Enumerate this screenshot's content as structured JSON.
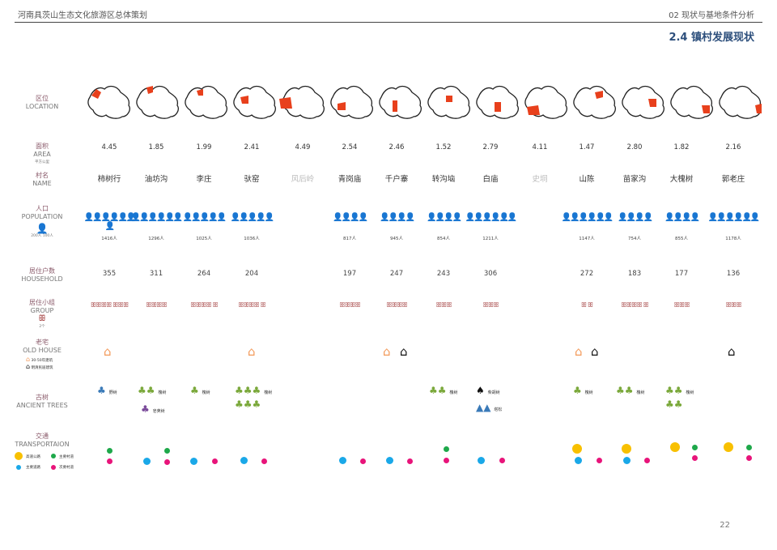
{
  "header": {
    "left": "河南具茨山生态文化旅游区总体策划",
    "right": "02 现状与基地条件分析",
    "section": "2.4 镇村发展现状"
  },
  "labels": {
    "location": {
      "zh": "区位",
      "en": "LOCATION"
    },
    "area": {
      "zh": "面积",
      "en": "AREA",
      "unit": "平方公里"
    },
    "name": {
      "zh": "村名",
      "en": "NAME"
    },
    "population": {
      "zh": "人口",
      "en": "POPULATION",
      "legend": "200人 100人"
    },
    "household": {
      "zh": "居住户数",
      "en": "HOUSEHOLD"
    },
    "group": {
      "zh": "居住小组",
      "en": "GROUP",
      "legend": "2个"
    },
    "oldhouse": {
      "zh": "老宅",
      "en": "OLD HOUSE",
      "legend1": "30-50年建筑",
      "legend2": "明清民居建筑"
    },
    "trees": {
      "zh": "古树",
      "en": "ANCIENT TREES"
    },
    "transport": {
      "zh": "交通",
      "en": "TRANSPORTAION",
      "leg1": "高速公路",
      "leg2": "主要村道",
      "leg3": "主要道路",
      "leg4": "次要村道"
    }
  },
  "villages": [
    {
      "name": "柿树行",
      "area": "4.45",
      "pop": "1416人",
      "hh": "355",
      "people": "👤👤👤👤👤👤👤",
      "groups": "ꕥꕥꕥꕥ ꕥꕥꕥ"
    },
    {
      "name": "油坊沟",
      "area": "1.85",
      "pop": "1296人",
      "hh": "311",
      "people": "👤👤👤👤👤👤",
      "groups": "ꕥꕥꕥꕥ"
    },
    {
      "name": "李庄",
      "area": "1.99",
      "pop": "1025人",
      "hh": "264",
      "people": "👤👤👤👤👤",
      "groups": "ꕥꕥꕥꕥ ꕥ"
    },
    {
      "name": "驮窑",
      "area": "2.41",
      "pop": "1036人",
      "hh": "204",
      "people": "👤👤👤👤👤",
      "groups": "ꕥꕥꕥꕥ ꕥ"
    },
    {
      "name": "风后岭",
      "area": "4.49",
      "pop": "",
      "hh": "",
      "people": "",
      "groups": "",
      "gray": true
    },
    {
      "name": "青岗庙",
      "area": "2.54",
      "pop": "817人",
      "hh": "197",
      "people": "👤👤👤👤",
      "groups": "ꕥꕥꕥꕥ"
    },
    {
      "name": "千户寨",
      "area": "2.46",
      "pop": "945人",
      "hh": "247",
      "people": "👤👤👤👤",
      "groups": "ꕥꕥꕥꕥ"
    },
    {
      "name": "转沟垴",
      "area": "1.52",
      "pop": "854人",
      "hh": "243",
      "people": "👤👤👤👤",
      "groups": "ꕥꕥꕥ"
    },
    {
      "name": "白庙",
      "area": "2.79",
      "pop": "1211人",
      "hh": "306",
      "people": "👤👤👤👤👤👤",
      "groups": "ꕥꕥꕥ"
    },
    {
      "name": "史垌",
      "area": "4.11",
      "pop": "",
      "hh": "",
      "people": "",
      "groups": "",
      "gray": true
    },
    {
      "name": "山陈",
      "area": "1.47",
      "pop": "1147人",
      "hh": "272",
      "people": "👤👤👤👤👤👤",
      "groups": "ꕥ ꕥ"
    },
    {
      "name": "苗家沟",
      "area": "2.80",
      "pop": "754人",
      "hh": "183",
      "people": "👤👤👤👤",
      "groups": "ꕥꕥꕥꕥ ꕥ"
    },
    {
      "name": "大槐树",
      "area": "1.82",
      "pop": "855人",
      "hh": "177",
      "people": "👤👤👤👤",
      "groups": "ꕥꕥꕥ"
    },
    {
      "name": "郭老庄",
      "area": "2.16",
      "pop": "1178人",
      "hh": "136",
      "people": "👤👤👤👤👤👤",
      "groups": "ꕥꕥꕥ"
    }
  ],
  "trees": {
    "t1": "野树",
    "t2": "槐树",
    "t3": "皂荚树",
    "t4": "槐树",
    "t5": "槐树",
    "t6": "槐树",
    "t7": "槐树",
    "t8": "柴胡树",
    "t9": "塔松",
    "t10": "槐树",
    "t11": "槐树",
    "t12": "槐树"
  },
  "page_number": "22",
  "colors": {
    "map_fill": "#e8401c",
    "old_orange": "#f39a5a",
    "tree_green": "#7aa83a",
    "tree_blue": "#3a7ab8",
    "highway": "#f8c000",
    "main_village": "#1ea84a",
    "main_road": "#1aa8e8",
    "sub_village": "#e8147a"
  }
}
